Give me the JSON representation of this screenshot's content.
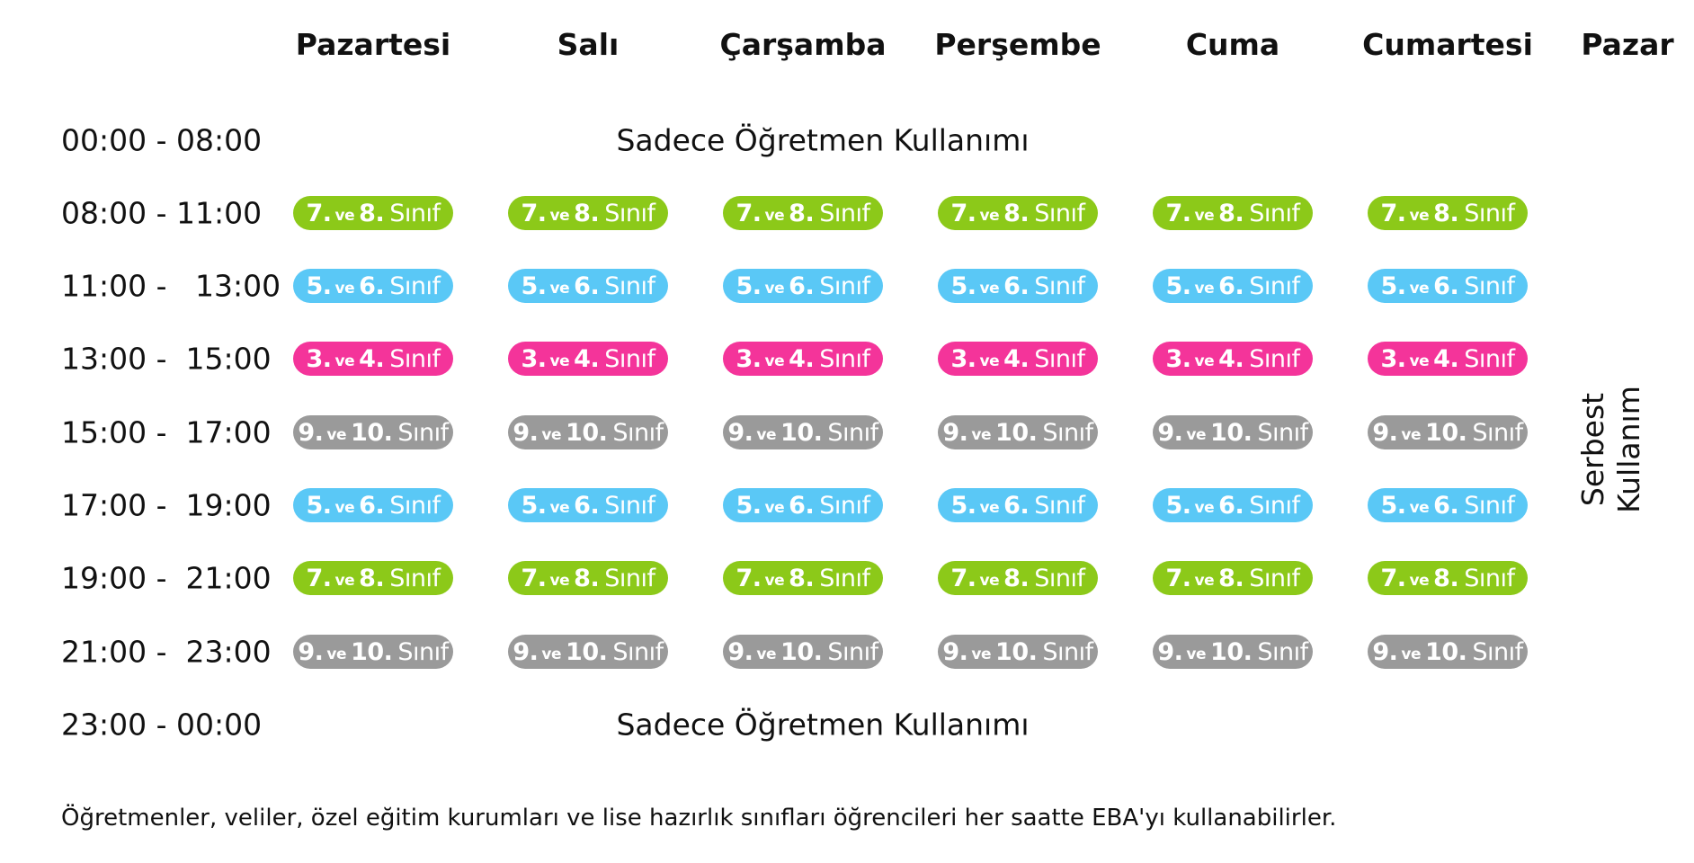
{
  "days": [
    "Pazartesi",
    "Salı",
    "Çarşamba",
    "Perşembe",
    "Cuma",
    "Cumartesi",
    "Pazar"
  ],
  "times": [
    "00:00 - 08:00",
    "08:00 - 11:00",
    "11:00 -   13:00",
    "13:00 -  15:00",
    "15:00 -  17:00",
    "17:00 -  19:00",
    "19:00 -  21:00",
    "21:00 -  23:00",
    "23:00 - 00:00"
  ],
  "teacher_only_label": "Sadece Öğretmen Kullanımı",
  "ve_label": "ve",
  "sinif_label": "Sınıf",
  "classes": [
    {
      "a": "7",
      "b": "8",
      "color": "#8cc919"
    },
    {
      "a": "5",
      "b": "6",
      "color": "#5ac8f6"
    },
    {
      "a": "3",
      "b": "4",
      "color": "#f4349a"
    },
    {
      "a": "9",
      "b": "10",
      "color": "#9a9a9a"
    },
    {
      "a": "5",
      "b": "6",
      "color": "#5ac8f6"
    },
    {
      "a": "7",
      "b": "8",
      "color": "#8cc919"
    },
    {
      "a": "9",
      "b": "10",
      "color": "#9a9a9a"
    }
  ],
  "sunday_label_line1": "Serbest",
  "sunday_label_line2": "Kullanım",
  "footer_note": "Öğretmenler, veliler, özel eğitim kurumları ve lise hazırlık sınıfları öğrencileri her saatte EBA'yı kullanabilirler."
}
